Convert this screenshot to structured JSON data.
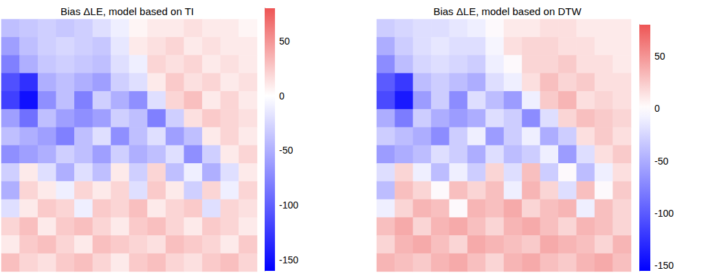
{
  "chart_data": [
    {
      "type": "heatmap",
      "title": "Bias ΔLE, model based on TI",
      "tick_labels": false,
      "colorbar": {
        "range": [
          -160,
          80
        ],
        "ticks": [
          -150,
          -100,
          -50,
          0,
          50
        ]
      },
      "cells": [
        [
          -40,
          -35,
          -30,
          -35,
          -30,
          -20,
          -10,
          5,
          10,
          10,
          15,
          10,
          10,
          5
        ],
        [
          -60,
          -40,
          -30,
          -25,
          -30,
          -35,
          -15,
          10,
          15,
          20,
          10,
          15,
          10,
          10
        ],
        [
          -80,
          -50,
          -35,
          -30,
          -35,
          -40,
          -20,
          -10,
          20,
          15,
          20,
          10,
          15,
          10
        ],
        [
          -110,
          -130,
          -50,
          -40,
          -50,
          -60,
          -30,
          -20,
          10,
          25,
          15,
          20,
          10,
          15
        ],
        [
          -120,
          -150,
          -70,
          -40,
          -80,
          -30,
          -50,
          -70,
          -20,
          20,
          30,
          10,
          20,
          10
        ],
        [
          -60,
          -90,
          -40,
          -60,
          -70,
          -60,
          -30,
          -40,
          -80,
          -30,
          15,
          25,
          20,
          15
        ],
        [
          -40,
          -50,
          -60,
          -80,
          -40,
          -20,
          -70,
          -40,
          -20,
          -60,
          -40,
          10,
          20,
          10
        ],
        [
          -70,
          -60,
          -50,
          -30,
          -40,
          -60,
          -30,
          -50,
          -40,
          -20,
          -70,
          -30,
          10,
          20
        ],
        [
          -30,
          10,
          -20,
          -50,
          -20,
          -40,
          10,
          -30,
          20,
          -40,
          -10,
          -50,
          -20,
          10
        ],
        [
          -50,
          20,
          10,
          -10,
          20,
          10,
          20,
          -20,
          25,
          10,
          -30,
          20,
          -10,
          20
        ],
        [
          -20,
          10,
          25,
          20,
          -10,
          25,
          20,
          30,
          10,
          20,
          25,
          -20,
          20,
          15
        ],
        [
          20,
          30,
          10,
          25,
          30,
          20,
          10,
          25,
          30,
          20,
          10,
          25,
          20,
          10
        ],
        [
          10,
          25,
          30,
          20,
          10,
          30,
          25,
          20,
          15,
          30,
          25,
          20,
          10,
          25
        ],
        [
          30,
          20,
          15,
          25,
          30,
          20,
          10,
          25,
          30,
          20,
          15,
          25,
          30,
          20
        ]
      ]
    },
    {
      "type": "heatmap",
      "title": "Bias ΔLE, model based on DTW",
      "tick_labels": false,
      "colorbar": {
        "range": [
          -155,
          80
        ],
        "ticks": [
          -150,
          -100,
          -50,
          0,
          50
        ]
      },
      "cells": [
        [
          -30,
          -25,
          -20,
          -20,
          -15,
          -10,
          0,
          10,
          10,
          15,
          15,
          10,
          10,
          10
        ],
        [
          -50,
          -30,
          -20,
          -15,
          -20,
          -20,
          -5,
          15,
          20,
          20,
          15,
          15,
          10,
          10
        ],
        [
          -70,
          -40,
          -25,
          -20,
          -25,
          -30,
          -10,
          0,
          20,
          20,
          25,
          15,
          15,
          10
        ],
        [
          -100,
          -120,
          -40,
          -30,
          -40,
          -50,
          -20,
          -10,
          15,
          30,
          20,
          25,
          15,
          15
        ],
        [
          -110,
          -140,
          -60,
          -30,
          -70,
          -20,
          -40,
          -60,
          -10,
          25,
          35,
          15,
          20,
          15
        ],
        [
          -50,
          -80,
          -30,
          -50,
          -60,
          -50,
          -20,
          -30,
          -70,
          -20,
          20,
          30,
          25,
          20
        ],
        [
          -30,
          -40,
          -50,
          -70,
          -30,
          -10,
          -60,
          -30,
          -10,
          -50,
          -30,
          15,
          25,
          15
        ],
        [
          -60,
          -50,
          -40,
          -20,
          -30,
          -50,
          -20,
          -40,
          -30,
          -10,
          -60,
          -20,
          15,
          25
        ],
        [
          -20,
          20,
          -10,
          -40,
          -10,
          -30,
          20,
          -20,
          30,
          -30,
          0,
          -40,
          -10,
          15
        ],
        [
          -40,
          30,
          20,
          0,
          30,
          20,
          30,
          -10,
          35,
          20,
          -20,
          30,
          0,
          25
        ],
        [
          -10,
          20,
          35,
          30,
          0,
          35,
          30,
          40,
          20,
          30,
          35,
          -10,
          30,
          20
        ],
        [
          30,
          40,
          20,
          35,
          40,
          30,
          20,
          35,
          40,
          30,
          20,
          35,
          30,
          20
        ],
        [
          20,
          35,
          40,
          30,
          20,
          40,
          35,
          30,
          25,
          40,
          35,
          30,
          20,
          35
        ],
        [
          35,
          30,
          25,
          35,
          40,
          30,
          20,
          35,
          40,
          30,
          25,
          35,
          40,
          30
        ]
      ]
    }
  ]
}
